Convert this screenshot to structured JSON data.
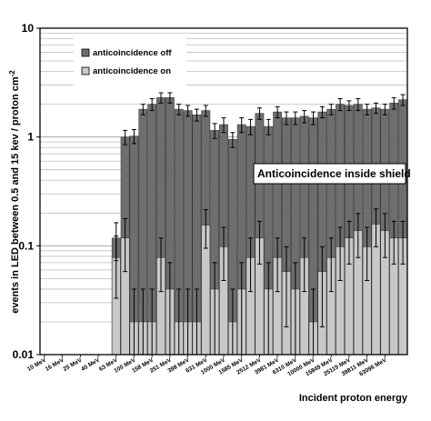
{
  "chart_data": {
    "type": "bar",
    "title": "",
    "xlabel": "Incident proton energy",
    "ylabel": "events in LED between 0.5 and 15 kev / proton cm",
    "ylabel_sup": "-2",
    "yscale": "log",
    "ylim": [
      0.01,
      10
    ],
    "yticks": [
      "0.01",
      "0.1",
      "1",
      "10"
    ],
    "grid": true,
    "legend_position": "top-left",
    "annotation": "Anticoincidence inside shield",
    "bar_colors": {
      "anticoincidence off": "#6e6e6e",
      "anticoincidence on": "#c8c8c8"
    },
    "tick_categories": [
      "10 MeV",
      "16 MeV",
      "25 MeV",
      "40 MeV",
      "63 MeV",
      "100 MeV",
      "158 MeV",
      "251 MeV",
      "398 MeV",
      "631 MeV",
      "1000 MeV",
      "1585 MeV",
      "2512 MeV",
      "3981 MeV",
      "6310 MeV",
      "10000 MeV",
      "15849 MeV",
      "25119 MeV",
      "39811 MeV",
      "63096 MeV"
    ],
    "series": [
      {
        "name": "anticoincidence off",
        "values": [
          0.01,
          0.01,
          0.01,
          0.01,
          0.01,
          0.01,
          0.01,
          0.01,
          0.118,
          1.0,
          1.02,
          1.8,
          2.0,
          2.3,
          2.3,
          1.8,
          1.75,
          1.6,
          1.75,
          1.15,
          1.3,
          0.95,
          1.3,
          1.25,
          1.65,
          1.25,
          1.7,
          1.5,
          1.5,
          1.55,
          1.5,
          1.7,
          1.8,
          2.0,
          1.95,
          2.0,
          1.8,
          1.85,
          1.8,
          2.05,
          2.2
        ],
        "errors": [
          0,
          0,
          0,
          0,
          0,
          0,
          0,
          0,
          0.045,
          0.15,
          0.15,
          0.2,
          0.25,
          0.25,
          0.25,
          0.2,
          0.2,
          0.2,
          0.2,
          0.18,
          0.2,
          0.15,
          0.2,
          0.2,
          0.2,
          0.2,
          0.2,
          0.2,
          0.2,
          0.2,
          0.2,
          0.2,
          0.2,
          0.25,
          0.2,
          0.25,
          0.2,
          0.2,
          0.2,
          0.25,
          0.25
        ]
      },
      {
        "name": "anticoincidence on",
        "values": [
          0.01,
          0.01,
          0.01,
          0.01,
          0.01,
          0.01,
          0.01,
          0.01,
          0.078,
          0.118,
          0.02,
          0.02,
          0.02,
          0.078,
          0.04,
          0.02,
          0.02,
          0.02,
          0.155,
          0.04,
          0.098,
          0.02,
          0.04,
          0.078,
          0.118,
          0.04,
          0.078,
          0.058,
          0.04,
          0.078,
          0.02,
          0.058,
          0.078,
          0.098,
          0.118,
          0.138,
          0.098,
          0.158,
          0.138,
          0.118,
          0.118
        ],
        "errors": [
          0,
          0,
          0,
          0,
          0,
          0,
          0,
          0,
          0.045,
          0.06,
          0.02,
          0.02,
          0.02,
          0.04,
          0.03,
          0.02,
          0.02,
          0.02,
          0.06,
          0.03,
          0.05,
          0.02,
          0.03,
          0.04,
          0.05,
          0.03,
          0.04,
          0.04,
          0.03,
          0.04,
          0.02,
          0.04,
          0.04,
          0.05,
          0.05,
          0.06,
          0.05,
          0.06,
          0.06,
          0.05,
          0.05
        ]
      }
    ]
  }
}
